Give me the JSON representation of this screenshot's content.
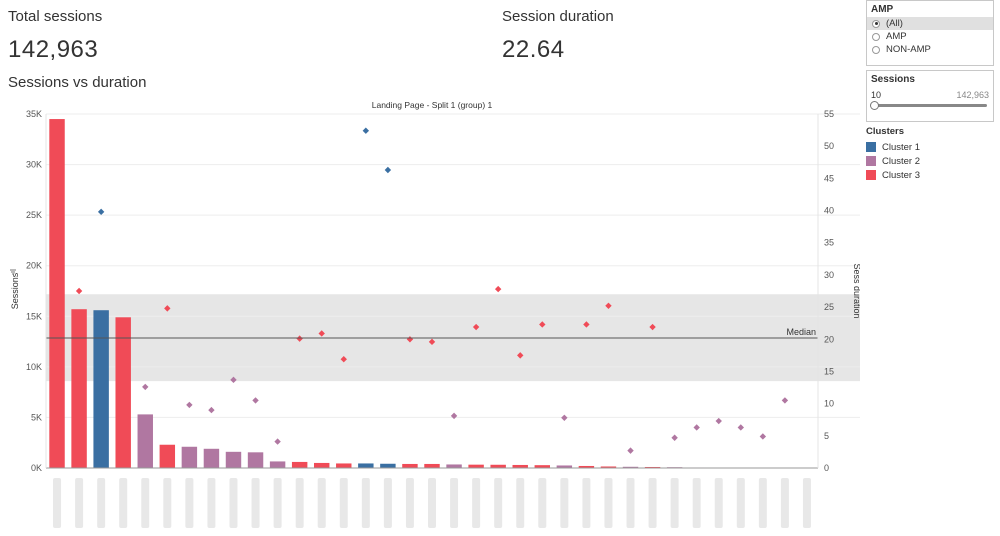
{
  "kpis": {
    "total_sessions_label": "Total sessions",
    "total_sessions_value": "142,963",
    "session_duration_label": "Session duration",
    "session_duration_value": "22.64"
  },
  "section_title": "Sessions vs duration",
  "filters": {
    "amp": {
      "title": "AMP",
      "options": [
        "(All)",
        "AMP",
        "NON-AMP"
      ],
      "selected": "(All)"
    },
    "sessions": {
      "title": "Sessions",
      "min_label": "10",
      "max_label": "142,963",
      "value_fraction": 0
    }
  },
  "legend": {
    "title": "Clusters",
    "items": [
      {
        "label": "Cluster 1",
        "color": "#3a6fa2"
      },
      {
        "label": "Cluster 2",
        "color": "#b077a1"
      },
      {
        "label": "Cluster 3",
        "color": "#f04b57"
      }
    ]
  },
  "chart_data": {
    "type": "bar",
    "title": "Landing Page - Split 1 (group) 1",
    "ylabel": "Sessions",
    "y2label": "Sess duration",
    "ylim": [
      0,
      35000
    ],
    "y2lim": [
      0,
      55
    ],
    "yticks": [
      "0K",
      "5K",
      "10K",
      "15K",
      "20K",
      "25K",
      "30K",
      "35K"
    ],
    "y2ticks": [
      "0",
      "5",
      "10",
      "15",
      "20",
      "25",
      "30",
      "35",
      "40",
      "45",
      "50",
      "55"
    ],
    "reference_line": {
      "label": "Median",
      "value": 20.2
    },
    "band": [
      13.5,
      27
    ],
    "sessions": [
      34500,
      15700,
      15600,
      14900,
      5300,
      2300,
      2100,
      1900,
      1600,
      1550,
      650,
      600,
      500,
      450,
      450,
      420,
      400,
      400,
      350,
      330,
      320,
      300,
      280,
      250,
      200,
      150,
      120,
      100,
      80,
      50,
      30,
      20,
      15,
      12,
      10
    ],
    "duration": [
      null,
      27.5,
      39.8,
      null,
      12.6,
      24.8,
      9.8,
      9.0,
      13.7,
      10.5,
      4.1,
      20.1,
      20.9,
      16.9,
      52.4,
      46.3,
      20.0,
      19.6,
      8.1,
      21.9,
      27.8,
      17.5,
      22.3,
      7.8,
      22.3,
      25.2,
      2.7,
      21.9,
      4.7,
      6.3,
      7.3,
      6.3,
      4.9,
      10.5,
      null
    ],
    "clusters": [
      3,
      3,
      1,
      3,
      2,
      3,
      2,
      2,
      2,
      2,
      2,
      3,
      3,
      3,
      1,
      1,
      3,
      3,
      2,
      3,
      3,
      3,
      3,
      2,
      3,
      3,
      2,
      3,
      2,
      2,
      2,
      2,
      2,
      2,
      2
    ],
    "cluster_colors": {
      "1": "#3a6fa2",
      "2": "#b077a1",
      "3": "#f04b57"
    }
  }
}
